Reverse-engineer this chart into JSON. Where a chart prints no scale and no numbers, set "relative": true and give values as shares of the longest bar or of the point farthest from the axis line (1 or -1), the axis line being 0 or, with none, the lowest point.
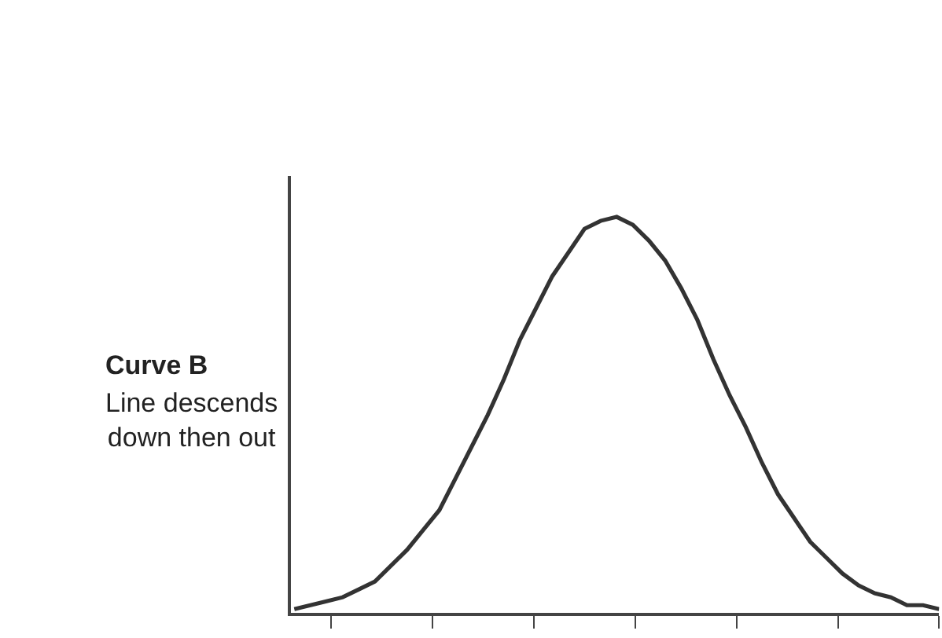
{
  "chart_data": {
    "type": "line",
    "title": "Curve B",
    "subtitle": "Line descends\ndown then out",
    "relative": true,
    "categories": [
      null,
      null,
      null,
      null,
      null,
      null,
      null,
      null,
      null,
      null,
      null,
      null,
      null,
      null,
      null,
      null,
      null,
      null,
      null,
      null,
      null,
      null,
      null,
      null,
      null,
      null,
      null,
      null,
      null,
      null,
      null,
      null,
      null,
      null,
      null,
      null,
      null,
      null,
      null,
      null,
      null
    ],
    "series": [
      {
        "color": "#333333",
        "values": [
          0.01,
          0.02,
          0.03,
          0.04,
          0.06,
          0.08,
          0.12,
          0.16,
          0.21,
          0.26,
          0.34,
          0.42,
          0.5,
          0.59,
          0.69,
          0.77,
          0.85,
          0.91,
          0.97,
          0.99,
          1.0,
          0.98,
          0.94,
          0.89,
          0.82,
          0.74,
          0.64,
          0.55,
          0.47,
          0.38,
          0.3,
          0.24,
          0.18,
          0.14,
          0.1,
          0.07,
          0.05,
          0.04,
          0.02,
          0.02,
          0.01
        ]
      }
    ],
    "marker": "none",
    "line_style": "solid"
  }
}
